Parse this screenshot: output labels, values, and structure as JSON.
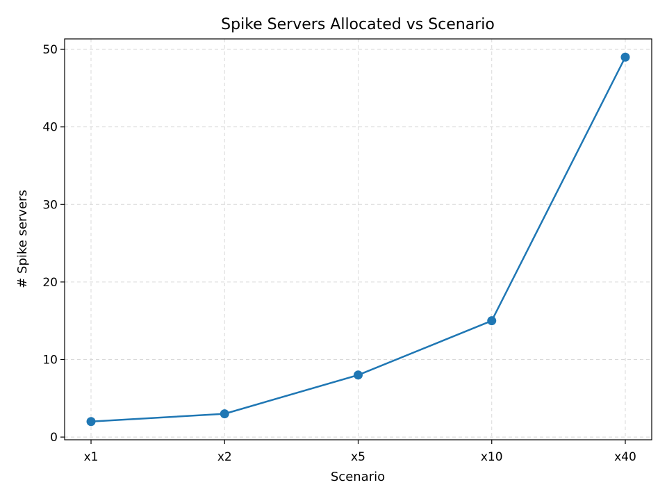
{
  "chart_data": {
    "type": "line",
    "title": "Spike Servers Allocated vs Scenario",
    "xlabel": "Scenario",
    "ylabel": "# Spike servers",
    "categories": [
      "x1",
      "x2",
      "x5",
      "x10",
      "x40"
    ],
    "series": [
      {
        "values": [
          2,
          3,
          8,
          15,
          49
        ],
        "color": "#1f77b4",
        "marker": "circle"
      }
    ],
    "ylim": [
      -0.35,
      51.35
    ],
    "yticks": [
      0,
      10,
      20,
      30,
      40,
      50
    ],
    "grid": true,
    "grid_style": "dashed"
  }
}
